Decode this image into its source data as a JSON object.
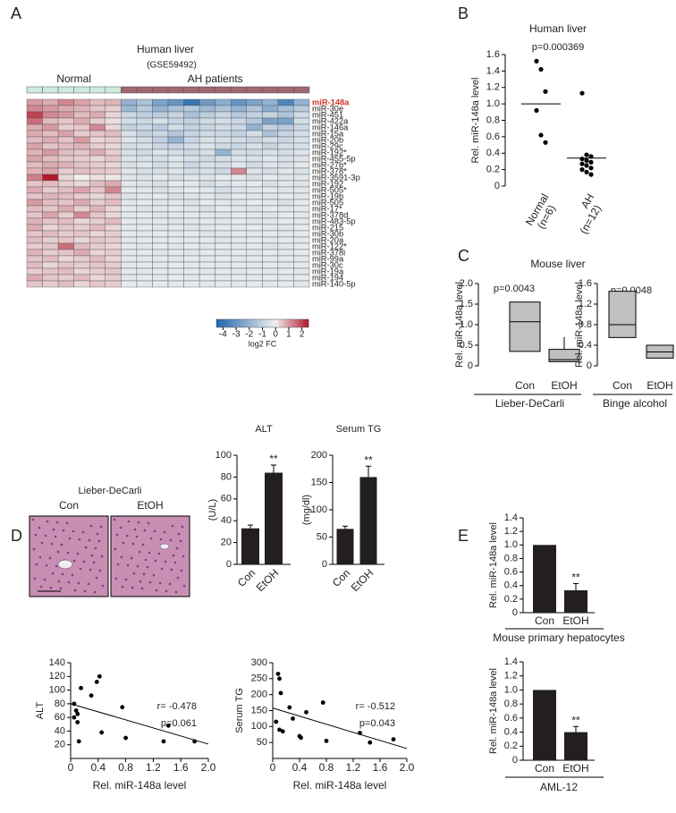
{
  "chart_data": [
    {
      "type": "heatmap",
      "panel": "A",
      "title": "Human liver",
      "subtitle": "(GSE59492)",
      "groups": [
        {
          "name": "Normal",
          "columns": 6,
          "color": "#cfeadc"
        },
        {
          "name": "AH patients",
          "columns": 12,
          "color": "#a0686f"
        }
      ],
      "rows": [
        "miR-148a",
        "miR-30e",
        "miR-451",
        "miR-422a",
        "miR-146a",
        "miR-15a",
        "miR-20b",
        "miR-29c",
        "miR-192*",
        "miR-455-5p",
        "miR-27b*",
        "miR-378*",
        "miR-3591-3p",
        "miR-192",
        "miR-505*",
        "miR-19b",
        "miR-505",
        "miR-17*",
        "miR-378d",
        "miR-483-5p",
        "miR-215",
        "miR-30b",
        "miR-20a",
        "miR-122*",
        "miR-378i",
        "miR-99a",
        "miR-30c",
        "miR-19a",
        "miR-194",
        "miR-140-5p"
      ],
      "highlight_row": 0,
      "highlight_color": "#d0312d",
      "values": [
        [
          1,
          0.8,
          1.2,
          0.9,
          0.6,
          0.7,
          -2,
          -1.5,
          -2.5,
          -3,
          -4,
          -2.8,
          -2.2,
          -3,
          -2.5,
          -2,
          -3.5,
          -2
        ],
        [
          1.2,
          1,
          0.8,
          0.7,
          0.5,
          0.4,
          -1.8,
          -1.2,
          -2,
          -1.5,
          -1.3,
          -1.8,
          -1.5,
          -2,
          -1.4,
          -2.2,
          -1.6,
          -1.2
        ],
        [
          2,
          1.2,
          1,
          0.6,
          0.8,
          0.3,
          -0.8,
          -1,
          -1.2,
          -0.9,
          -1.5,
          -1.1,
          -0.8,
          -1.3,
          -1,
          -0.9,
          -1.4,
          -0.7
        ],
        [
          1.5,
          0.6,
          0.5,
          0.8,
          0.4,
          0.2,
          -0.6,
          -0.8,
          -0.5,
          -0.9,
          -1,
          -0.7,
          -0.6,
          -0.8,
          -1.3,
          -2.5,
          -2.5,
          -0.6
        ],
        [
          0.8,
          1,
          0.4,
          0.5,
          1.2,
          0.3,
          -1,
          -0.8,
          -1.2,
          -0.6,
          -1,
          -0.9,
          -0.7,
          -0.8,
          -2,
          -1,
          -1.2,
          -0.8
        ],
        [
          0.8,
          0.6,
          0.9,
          0.4,
          0.5,
          0.6,
          -0.5,
          -1,
          -0.8,
          -1.3,
          -0.9,
          -0.7,
          -0.8,
          -1,
          -0.6,
          -1.5,
          -0.9,
          -0.6
        ],
        [
          0.6,
          0.8,
          0.5,
          1,
          0.3,
          0.4,
          -0.4,
          -0.6,
          -1,
          -2,
          -0.8,
          -0.5,
          -0.6,
          -0.7,
          -0.9,
          -0.6,
          -0.8,
          -0.5
        ],
        [
          0.9,
          0.5,
          0.6,
          0.7,
          0.4,
          0.3,
          -0.6,
          -0.5,
          -0.8,
          -0.9,
          -0.6,
          -0.4,
          -0.7,
          -0.8,
          -0.5,
          -0.9,
          -0.6,
          -0.5
        ],
        [
          0.7,
          1,
          0.6,
          0.5,
          0.8,
          0.4,
          -0.5,
          -0.7,
          -0.4,
          -0.6,
          -0.8,
          -0.5,
          -2,
          -0.6,
          -0.7,
          -0.5,
          -0.6,
          -0.4
        ],
        [
          0.9,
          0.6,
          0.5,
          0.4,
          0.3,
          0.5,
          -0.4,
          -0.5,
          -0.6,
          -0.3,
          -0.5,
          -0.7,
          -0.6,
          -0.4,
          -0.5,
          -0.3,
          -0.5,
          -0.4
        ],
        [
          0.6,
          0.8,
          0.7,
          0.5,
          0.4,
          0.3,
          -0.5,
          -0.3,
          -0.6,
          -0.4,
          -0.8,
          -0.5,
          -0.6,
          -0.3,
          -0.7,
          -0.4,
          -0.5,
          -0.3
        ],
        [
          0.7,
          0.9,
          0.4,
          0.6,
          0.5,
          0.4,
          -0.3,
          -0.6,
          -0.5,
          -0.4,
          -0.6,
          -0.5,
          -0.8,
          1.2,
          -0.4,
          -0.6,
          -0.3,
          -0.5
        ],
        [
          1.3,
          2.5,
          0.3,
          0,
          0.2,
          0.1,
          -0.3,
          -0.4,
          -0.2,
          -0.5,
          -0.3,
          -0.4,
          -0.2,
          -0.3,
          -0.5,
          -0.2,
          -0.4,
          -0.3
        ],
        [
          0.5,
          0.6,
          0.4,
          0.3,
          0.6,
          0.8,
          -0.3,
          -0.4,
          -0.5,
          -0.2,
          -0.3,
          -0.6,
          -0.4,
          -0.3,
          -0.2,
          -0.5,
          -0.3,
          -0.4
        ],
        [
          0.8,
          0.4,
          0.6,
          0.9,
          0.5,
          1.2,
          -0.2,
          -0.3,
          -0.5,
          -0.4,
          -0.2,
          -0.3,
          -0.6,
          -0.4,
          -0.3,
          -0.2,
          -0.4,
          -0.3
        ],
        [
          0.5,
          0.7,
          0.6,
          0.4,
          0.3,
          0.5,
          -0.4,
          -0.3,
          -0.2,
          -0.5,
          -0.4,
          -0.3,
          -0.5,
          -0.2,
          -0.3,
          -0.4,
          -0.2,
          -0.3
        ],
        [
          1,
          0.6,
          0.5,
          0.8,
          0.4,
          0.6,
          -0.3,
          -0.2,
          -0.4,
          -0.3,
          -0.5,
          -0.2,
          -0.3,
          -0.4,
          -0.2,
          -0.3,
          -0.5,
          -0.2
        ],
        [
          0.6,
          0.5,
          0.8,
          0.4,
          0.7,
          0.3,
          -0.2,
          -0.4,
          -0.3,
          -0.2,
          -0.3,
          -0.5,
          -0.2,
          -0.3,
          -0.4,
          -0.2,
          -0.3,
          -0.2
        ],
        [
          0.5,
          0.9,
          0.4,
          1.2,
          0.5,
          0.3,
          -0.3,
          -0.2,
          -0.4,
          -0.3,
          -0.2,
          -0.3,
          -0.4,
          -0.2,
          -0.3,
          -0.4,
          -0.2,
          -0.3
        ],
        [
          0.7,
          0.5,
          0.6,
          0.3,
          0.4,
          0.6,
          -0.2,
          -0.3,
          -0.2,
          -0.4,
          -0.3,
          -0.2,
          -0.3,
          -0.2,
          -0.4,
          -0.3,
          -0.2,
          -0.3
        ],
        [
          0.8,
          0.3,
          0.5,
          0.4,
          0.6,
          0.3,
          -0.3,
          -0.2,
          -0.3,
          -0.2,
          -0.4,
          -0.3,
          -0.2,
          -0.3,
          -0.2,
          -0.3,
          -0.4,
          -0.2
        ],
        [
          0.5,
          0.6,
          0.4,
          0.5,
          0.3,
          0.4,
          -0.2,
          -0.3,
          -0.2,
          -0.3,
          -0.2,
          -0.4,
          -0.3,
          -0.2,
          -0.3,
          -0.2,
          -0.3,
          -0.2
        ],
        [
          0.6,
          0.4,
          0.5,
          0.3,
          0.5,
          0.4,
          -0.3,
          -0.2,
          -0.3,
          -0.2,
          -0.3,
          -0.2,
          -0.4,
          -0.3,
          -0.2,
          -0.3,
          -0.2,
          -0.3
        ],
        [
          0.4,
          0.5,
          1.5,
          0.6,
          0.4,
          0.3,
          -0.2,
          -0.3,
          -0.2,
          -0.3,
          -0.2,
          -0.3,
          -0.2,
          -0.3,
          -0.2,
          -0.4,
          -0.3,
          -0.2
        ],
        [
          0.7,
          0.4,
          0.5,
          0.8,
          0.3,
          0.4,
          -0.3,
          -0.2,
          -0.3,
          -0.2,
          -0.3,
          -0.2,
          -0.3,
          -0.2,
          -0.3,
          -0.2,
          -0.3,
          -0.2
        ],
        [
          0.5,
          0.6,
          0.3,
          0.4,
          0.6,
          0.3,
          -0.2,
          -0.3,
          -0.2,
          -0.3,
          -0.2,
          -0.3,
          -0.2,
          -0.3,
          -0.2,
          -0.3,
          -0.2,
          -0.3
        ],
        [
          0.6,
          0.3,
          0.5,
          0.4,
          0.5,
          0.4,
          -0.3,
          -0.2,
          -0.3,
          -0.2,
          -0.3,
          -0.2,
          -0.3,
          -0.2,
          -0.3,
          -0.2,
          -0.3,
          -0.2
        ],
        [
          0.4,
          0.5,
          0.6,
          0.3,
          0.4,
          0.5,
          -0.2,
          -0.3,
          -0.2,
          -0.3,
          -0.2,
          -0.3,
          -0.2,
          -0.3,
          -0.2,
          -0.3,
          -0.2,
          -0.3
        ],
        [
          0.8,
          0.5,
          0.4,
          0.6,
          0.3,
          0.4,
          -0.3,
          -0.2,
          -0.3,
          -0.2,
          -0.3,
          -0.2,
          -0.3,
          -0.2,
          -0.3,
          -0.2,
          -0.3,
          -0.2
        ],
        [
          0.5,
          0.4,
          0.6,
          0.3,
          0.5,
          0.4,
          -0.2,
          -0.3,
          -0.2,
          -0.3,
          -0.2,
          -0.3,
          -0.2,
          -0.3,
          -0.2,
          -0.3,
          -0.2,
          -0.3
        ]
      ],
      "colorbar": {
        "label": "log2 FC",
        "lim": [
          -4.5,
          2.5
        ],
        "ticks": [
          -4,
          -3,
          -2,
          -1,
          0,
          1,
          2
        ],
        "colors": [
          "#2166ac",
          "#f0f0f0",
          "#b2182b"
        ]
      }
    },
    {
      "type": "dot",
      "panel": "B",
      "title": "Human liver",
      "annotation": "p=0.000369",
      "ylabel": "Rel. miR-148a level",
      "categories": [
        [
          "Normal",
          "(n=6)"
        ],
        [
          "AH",
          "(n=12)"
        ]
      ],
      "values": [
        [
          1.52,
          1.42,
          1.15,
          0.92,
          0.62,
          0.53
        ],
        [
          1.13,
          0.38,
          0.36,
          0.33,
          0.31,
          0.29,
          0.27,
          0.25,
          0.22,
          0.2,
          0.17,
          0.14
        ]
      ],
      "means": [
        1.0,
        0.34
      ],
      "ylim": [
        0,
        1.6
      ],
      "yticks": [
        0,
        0.2,
        0.4,
        0.6,
        0.8,
        {
          "value": 1,
          "label": "1.0"
        },
        1.2,
        1.4,
        1.6
      ],
      "color": "#000000"
    },
    {
      "type": "box",
      "panel": "C",
      "title": "Mouse liver",
      "annotation": "p=0.0043",
      "ylabel": "Rel. miR-148a level",
      "xlabel": "Lieber-DeCarli",
      "categories": [
        "Con",
        "EtOH"
      ],
      "low": [
        0.35,
        0.1
      ],
      "median": [
        1.07,
        0.15
      ],
      "high": [
        1.55,
        0.4
      ],
      "whisker_high": [
        null,
        0.7
      ],
      "ylim": [
        0,
        2
      ],
      "yticks": [
        0,
        0.5,
        {
          "value": 1,
          "label": "1.0"
        },
        1.5,
        {
          "value": 2,
          "label": "2.0"
        }
      ],
      "color": "#c0c0c0"
    },
    {
      "type": "box",
      "annotation": "p=0.0048",
      "ylabel": "Rel. miR-148a level",
      "xlabel": "Binge alcohol",
      "categories": [
        "Con",
        "EtOH"
      ],
      "low": [
        0.55,
        0.15
      ],
      "median": [
        0.8,
        0.27
      ],
      "high": [
        1.45,
        0.4
      ],
      "whisker_high": [
        null,
        null
      ],
      "ylim": [
        0,
        1.6
      ],
      "yticks": [
        0,
        0.4,
        0.8,
        1.2,
        1.6
      ],
      "color": "#c0c0c0"
    },
    {
      "type": "image",
      "panel": "D",
      "title": "Lieber-DeCarli",
      "categories": [
        "Con",
        "EtOH"
      ]
    },
    {
      "type": "bar",
      "title": "ALT",
      "ylabel": "(U/L)",
      "categories": [
        "Con",
        "EtOH"
      ],
      "values": [
        33,
        84
      ],
      "errors": [
        3,
        7
      ],
      "significance": [
        null,
        "**"
      ],
      "ylim": [
        0,
        100
      ],
      "yticks": [
        0,
        20,
        40,
        60,
        80,
        100
      ],
      "color": "#231f20"
    },
    {
      "type": "bar",
      "title": "Serum TG",
      "ylabel": "(mg/dl)",
      "categories": [
        "Con",
        "EtOH"
      ],
      "values": [
        65,
        160
      ],
      "errors": [
        5,
        20
      ],
      "significance": [
        null,
        "**"
      ],
      "ylim": [
        0,
        200
      ],
      "yticks": [
        0,
        50,
        100,
        150,
        200
      ],
      "color": "#231f20"
    },
    {
      "type": "scatter",
      "ylabel": "ALT",
      "xlabel": "Rel. miR-148a level",
      "x": [
        0.05,
        0.08,
        0.1,
        0.05,
        0.1,
        0.12,
        0.15,
        0.3,
        0.38,
        0.42,
        0.45,
        0.75,
        0.8,
        1.35,
        1.42,
        1.8
      ],
      "values": [
        80,
        70,
        65,
        60,
        53,
        25,
        103,
        92,
        112,
        120,
        38,
        75,
        30,
        25,
        48,
        25
      ],
      "trendline": {
        "x": [
          0,
          2
        ],
        "y": [
          80,
          21
        ]
      },
      "annotations": [
        "r= -0.478",
        "p=0.061"
      ],
      "xlim": [
        0,
        2
      ],
      "ylim": [
        0,
        140
      ],
      "xticks": [
        0,
        0.4,
        0.8,
        1.2,
        1.6,
        {
          "value": 2,
          "label": "2.0"
        }
      ],
      "yticks": [
        20,
        40,
        60,
        80,
        100,
        120,
        140
      ],
      "color": "#000000"
    },
    {
      "type": "scatter",
      "ylabel": "Serum TG",
      "xlabel": "Rel. miR-148a level",
      "x": [
        0.08,
        0.1,
        0.12,
        0.05,
        0.1,
        0.15,
        0.25,
        0.3,
        0.4,
        0.42,
        0.5,
        0.75,
        0.8,
        1.3,
        1.45,
        1.8
      ],
      "values": [
        265,
        250,
        205,
        115,
        90,
        85,
        160,
        125,
        70,
        65,
        145,
        175,
        55,
        80,
        50,
        60
      ],
      "trendline": {
        "x": [
          0,
          2
        ],
        "y": [
          158,
          31
        ]
      },
      "annotations": [
        "r= -0.512",
        "p=0.043"
      ],
      "xlim": [
        0,
        2
      ],
      "ylim": [
        0,
        300
      ],
      "xticks": [
        0,
        0.4,
        0.8,
        1.2,
        1.6,
        {
          "value": 2,
          "label": "2.0"
        }
      ],
      "yticks": [
        50,
        100,
        150,
        200,
        250,
        300
      ],
      "color": "#000000"
    },
    {
      "type": "bar",
      "panel": "E",
      "ylabel": "Rel. miR-148a level",
      "xlabel": "Mouse primary hepatocytes",
      "categories": [
        "Con",
        "EtOH"
      ],
      "values": [
        1,
        0.33
      ],
      "errors": [
        0,
        0.1
      ],
      "significance": [
        null,
        "**"
      ],
      "ylim": [
        0,
        1.4
      ],
      "yticks": [
        0,
        0.2,
        0.4,
        0.6,
        0.8,
        {
          "value": 1,
          "label": "1.0"
        },
        1.2,
        1.4
      ],
      "color": "#231f20"
    },
    {
      "type": "bar",
      "ylabel": "Rel. miR-148a level",
      "xlabel": "AML-12",
      "categories": [
        "Con",
        "EtOH"
      ],
      "values": [
        1,
        0.4
      ],
      "errors": [
        0,
        0.08
      ],
      "significance": [
        null,
        "**"
      ],
      "ylim": [
        0,
        1.4
      ],
      "yticks": [
        0,
        0.2,
        0.4,
        0.6,
        0.8,
        {
          "value": 1,
          "label": "1.0"
        },
        1.2,
        1.4
      ],
      "color": "#231f20"
    }
  ]
}
